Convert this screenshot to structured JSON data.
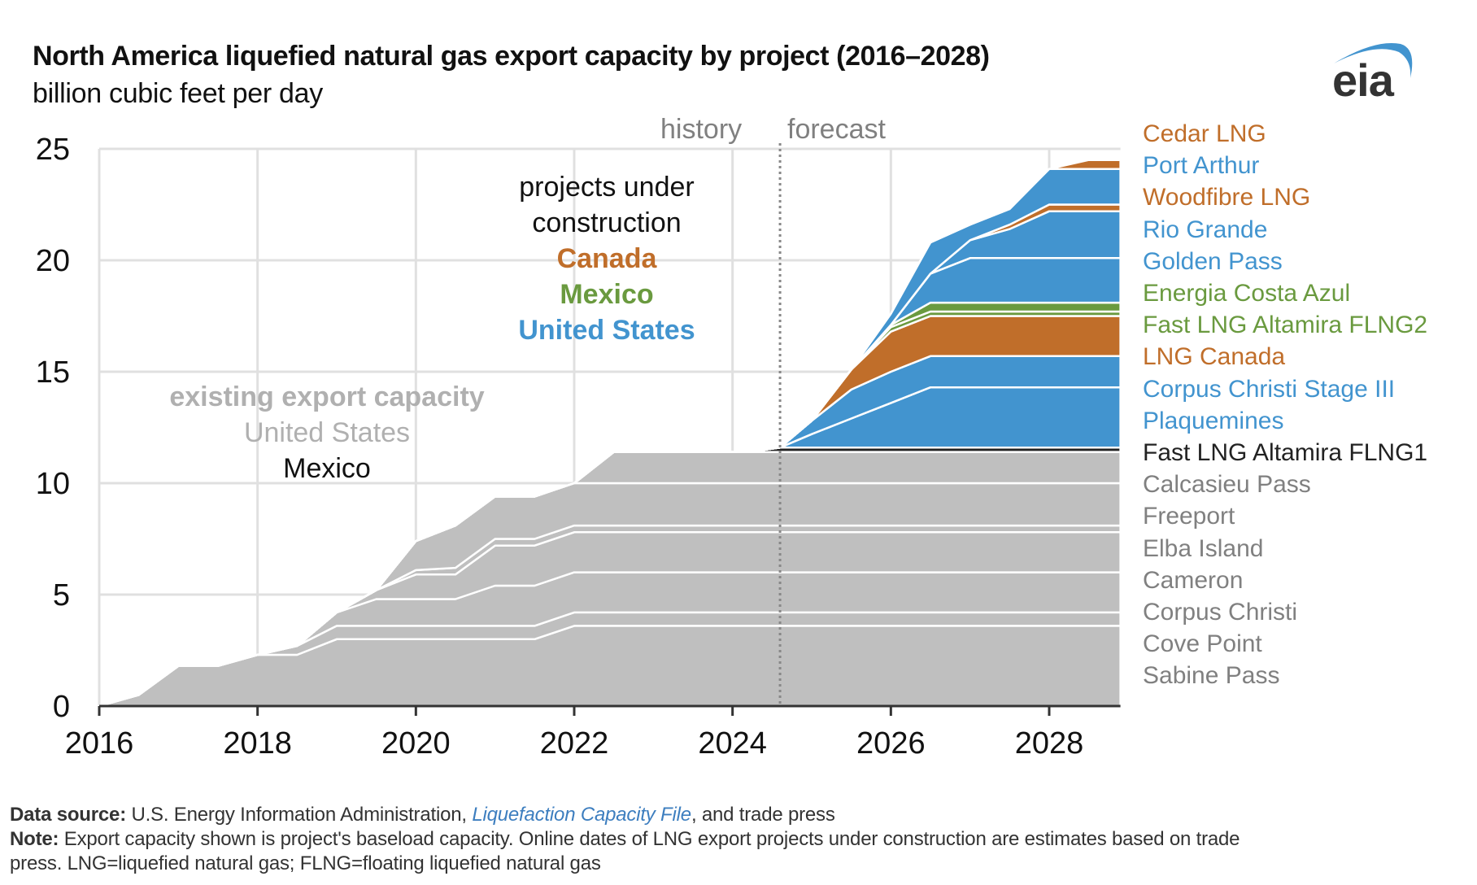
{
  "header": {
    "title": "North America liquefied natural gas export capacity by project (2016–2028)",
    "subtitle": "billion cubic feet per day",
    "logo_text": "eia",
    "logo_icon": "eia-arc-logo"
  },
  "colors": {
    "existing": "#bfbfbf",
    "canada": "#c06e2a",
    "mexico": "#6a9a3f",
    "united_states": "#4294cf",
    "mexico_existing_line": "#222222",
    "grid": "#e0e0e0",
    "axis": "#333333",
    "divider": "#888888",
    "gray_text": "#808080"
  },
  "annotations": {
    "history": "history",
    "forecast": "forecast",
    "under_construction_line1": "projects under",
    "under_construction_line2": "construction",
    "canada": "Canada",
    "mexico": "Mexico",
    "united_states": "United States",
    "existing_title": "existing export capacity",
    "existing_us": "United States",
    "existing_mexico": "Mexico"
  },
  "chart_data": {
    "type": "area",
    "stacked": true,
    "title": "North America liquefied natural gas export capacity by project (2016–2028)",
    "ylabel": "billion cubic feet per day",
    "xlabel": "",
    "xlim": [
      2016,
      2028.9
    ],
    "ylim": [
      0,
      25
    ],
    "x_ticks": [
      2016,
      2018,
      2020,
      2022,
      2024,
      2026,
      2028
    ],
    "x_tick_labels": [
      "2016",
      "2018",
      "2020",
      "2022",
      "2024",
      "2026",
      "2028"
    ],
    "y_ticks": [
      0,
      5,
      10,
      15,
      20,
      25
    ],
    "y_tick_labels": [
      "0",
      "5",
      "10",
      "15",
      "20",
      "25"
    ],
    "grid": true,
    "history_forecast_divider_x": 2024.6,
    "legend_placement": "right",
    "x": [
      2016,
      2016.5,
      2017,
      2017.5,
      2018,
      2018.5,
      2019,
      2019.5,
      2020,
      2020.5,
      2021,
      2021.5,
      2022,
      2022.5,
      2023,
      2023.5,
      2024,
      2024.3,
      2024.6,
      2025,
      2025.5,
      2026,
      2026.5,
      2027,
      2027.5,
      2028,
      2028.5,
      2028.9
    ],
    "series": [
      {
        "name": "Sabine Pass",
        "group": "existing-us",
        "values": [
          0,
          0.5,
          1.8,
          1.8,
          2.3,
          2.3,
          3.0,
          3.0,
          3.0,
          3.0,
          3.0,
          3.0,
          3.6,
          3.6,
          3.6,
          3.6,
          3.6,
          3.6,
          3.6,
          3.6,
          3.6,
          3.6,
          3.6,
          3.6,
          3.6,
          3.6,
          3.6,
          3.6
        ]
      },
      {
        "name": "Cove Point",
        "group": "existing-us",
        "values": [
          0,
          0,
          0,
          0,
          0,
          0.4,
          0.6,
          0.6,
          0.6,
          0.6,
          0.6,
          0.6,
          0.6,
          0.6,
          0.6,
          0.6,
          0.6,
          0.6,
          0.6,
          0.6,
          0.6,
          0.6,
          0.6,
          0.6,
          0.6,
          0.6,
          0.6,
          0.6
        ]
      },
      {
        "name": "Corpus Christi",
        "group": "existing-us",
        "values": [
          0,
          0,
          0,
          0,
          0,
          0,
          0.6,
          1.2,
          1.2,
          1.2,
          1.8,
          1.8,
          1.8,
          1.8,
          1.8,
          1.8,
          1.8,
          1.8,
          1.8,
          1.8,
          1.8,
          1.8,
          1.8,
          1.8,
          1.8,
          1.8,
          1.8,
          1.8
        ]
      },
      {
        "name": "Cameron",
        "group": "existing-us",
        "values": [
          0,
          0,
          0,
          0,
          0,
          0,
          0,
          0.4,
          1.1,
          1.1,
          1.8,
          1.8,
          1.8,
          1.8,
          1.8,
          1.8,
          1.8,
          1.8,
          1.8,
          1.8,
          1.8,
          1.8,
          1.8,
          1.8,
          1.8,
          1.8,
          1.8,
          1.8
        ]
      },
      {
        "name": "Elba Island",
        "group": "existing-us",
        "values": [
          0,
          0,
          0,
          0,
          0,
          0,
          0,
          0,
          0.2,
          0.3,
          0.3,
          0.3,
          0.3,
          0.3,
          0.3,
          0.3,
          0.3,
          0.3,
          0.3,
          0.3,
          0.3,
          0.3,
          0.3,
          0.3,
          0.3,
          0.3,
          0.3,
          0.3
        ]
      },
      {
        "name": "Freeport",
        "group": "existing-us",
        "values": [
          0,
          0,
          0,
          0,
          0,
          0,
          0,
          0,
          1.3,
          1.9,
          1.9,
          1.9,
          1.9,
          1.9,
          1.9,
          1.9,
          1.9,
          1.9,
          1.9,
          1.9,
          1.9,
          1.9,
          1.9,
          1.9,
          1.9,
          1.9,
          1.9,
          1.9
        ]
      },
      {
        "name": "Calcasieu Pass",
        "group": "existing-us",
        "values": [
          0,
          0,
          0,
          0,
          0,
          0,
          0,
          0,
          0,
          0,
          0,
          0,
          0,
          1.4,
          1.4,
          1.4,
          1.4,
          1.4,
          1.4,
          1.4,
          1.4,
          1.4,
          1.4,
          1.4,
          1.4,
          1.4,
          1.4,
          1.4
        ]
      },
      {
        "name": "Fast LNG Altamira FLNG1",
        "group": "existing-mexico",
        "values": [
          0,
          0,
          0,
          0,
          0,
          0,
          0,
          0,
          0,
          0,
          0,
          0,
          0,
          0,
          0,
          0,
          0,
          0.05,
          0.2,
          0.2,
          0.2,
          0.2,
          0.2,
          0.2,
          0.2,
          0.2,
          0.2,
          0.2
        ]
      },
      {
        "name": "Plaquemines",
        "group": "construction-us",
        "values": [
          0,
          0,
          0,
          0,
          0,
          0,
          0,
          0,
          0,
          0,
          0,
          0,
          0,
          0,
          0,
          0,
          0,
          0,
          0,
          0.6,
          1.3,
          2.0,
          2.7,
          2.7,
          2.7,
          2.7,
          2.7,
          2.7
        ]
      },
      {
        "name": "Corpus Christi Stage III",
        "group": "construction-us",
        "values": [
          0,
          0,
          0,
          0,
          0,
          0,
          0,
          0,
          0,
          0,
          0,
          0,
          0,
          0,
          0,
          0,
          0,
          0,
          0,
          0.6,
          1.3,
          1.4,
          1.4,
          1.4,
          1.4,
          1.4,
          1.4,
          1.4
        ]
      },
      {
        "name": "LNG Canada",
        "group": "construction-canada",
        "values": [
          0,
          0,
          0,
          0,
          0,
          0,
          0,
          0,
          0,
          0,
          0,
          0,
          0,
          0,
          0,
          0,
          0,
          0,
          0,
          0,
          0.9,
          1.8,
          1.8,
          1.8,
          1.8,
          1.8,
          1.8,
          1.8
        ]
      },
      {
        "name": "Fast LNG Altamira FLNG2",
        "group": "construction-mexico",
        "values": [
          0,
          0,
          0,
          0,
          0,
          0,
          0,
          0,
          0,
          0,
          0,
          0,
          0,
          0,
          0,
          0,
          0,
          0,
          0,
          0,
          0,
          0.2,
          0.2,
          0.2,
          0.2,
          0.2,
          0.2,
          0.2
        ]
      },
      {
        "name": "Energia Costa Azul",
        "group": "construction-mexico",
        "values": [
          0,
          0,
          0,
          0,
          0,
          0,
          0,
          0,
          0,
          0,
          0,
          0,
          0,
          0,
          0,
          0,
          0,
          0,
          0,
          0,
          0,
          0.1,
          0.4,
          0.4,
          0.4,
          0.4,
          0.4,
          0.4
        ]
      },
      {
        "name": "Golden Pass",
        "group": "construction-us",
        "values": [
          0,
          0,
          0,
          0,
          0,
          0,
          0,
          0,
          0,
          0,
          0,
          0,
          0,
          0,
          0,
          0,
          0,
          0,
          0,
          0,
          0,
          0,
          1.3,
          2.0,
          2.0,
          2.0,
          2.0,
          2.0
        ]
      },
      {
        "name": "Rio Grande",
        "group": "construction-us",
        "values": [
          0,
          0,
          0,
          0,
          0,
          0,
          0,
          0,
          0,
          0,
          0,
          0,
          0,
          0,
          0,
          0,
          0,
          0,
          0,
          0,
          0,
          0,
          0,
          0.8,
          1.3,
          2.1,
          2.1,
          2.1
        ]
      },
      {
        "name": "Woodfibre LNG",
        "group": "construction-canada",
        "values": [
          0,
          0,
          0,
          0,
          0,
          0,
          0,
          0,
          0,
          0,
          0,
          0,
          0,
          0,
          0,
          0,
          0,
          0,
          0,
          0,
          0,
          0,
          0,
          0,
          0.2,
          0.3,
          0.3,
          0.3
        ]
      },
      {
        "name": "Port Arthur",
        "group": "construction-us",
        "values": [
          0,
          0,
          0,
          0,
          0,
          0,
          0,
          0,
          0,
          0,
          0,
          0,
          0,
          0,
          0,
          0,
          0,
          0,
          0,
          0,
          0,
          0.5,
          1.4,
          0.7,
          0.7,
          1.6,
          1.6,
          1.6
        ]
      },
      {
        "name": "Cedar LNG",
        "group": "construction-canada",
        "values": [
          0,
          0,
          0,
          0,
          0,
          0,
          0,
          0,
          0,
          0,
          0,
          0,
          0,
          0,
          0,
          0,
          0,
          0,
          0,
          0,
          0,
          0,
          0,
          0,
          0,
          0,
          0.4,
          0.4
        ]
      }
    ],
    "legend": [
      {
        "label": "Cedar LNG",
        "group": "canada"
      },
      {
        "label": "Port Arthur",
        "group": "united_states"
      },
      {
        "label": "Woodfibre LNG",
        "group": "canada"
      },
      {
        "label": "Rio Grande",
        "group": "united_states"
      },
      {
        "label": "Golden Pass",
        "group": "united_states"
      },
      {
        "label": "Energia Costa Azul",
        "group": "mexico"
      },
      {
        "label": "Fast LNG Altamira FLNG2",
        "group": "mexico"
      },
      {
        "label": "LNG Canada",
        "group": "canada"
      },
      {
        "label": "Corpus Christi Stage III",
        "group": "united_states"
      },
      {
        "label": "Plaquemines",
        "group": "united_states"
      },
      {
        "label": "Fast LNG Altamira FLNG1",
        "group": "existing_mexico"
      },
      {
        "label": "Calcasieu Pass",
        "group": "existing"
      },
      {
        "label": "Freeport",
        "group": "existing"
      },
      {
        "label": "Elba Island",
        "group": "existing"
      },
      {
        "label": "Cameron",
        "group": "existing"
      },
      {
        "label": "Corpus Christi",
        "group": "existing"
      },
      {
        "label": "Cove Point",
        "group": "existing"
      },
      {
        "label": "Sabine Pass",
        "group": "existing"
      }
    ]
  },
  "footer": {
    "source_label": "Data source:",
    "source_text_1": "U.S. Energy Information Administration,",
    "source_link": "Liquefaction Capacity File",
    "source_text_2": ", and trade press",
    "note_label": "Note:",
    "note_line1": "Export capacity shown is project's baseload capacity. Online dates of LNG export projects under construction are estimates based on trade",
    "note_line2": "press. LNG=liquefied natural gas; FLNG=floating liquefied natural gas"
  }
}
